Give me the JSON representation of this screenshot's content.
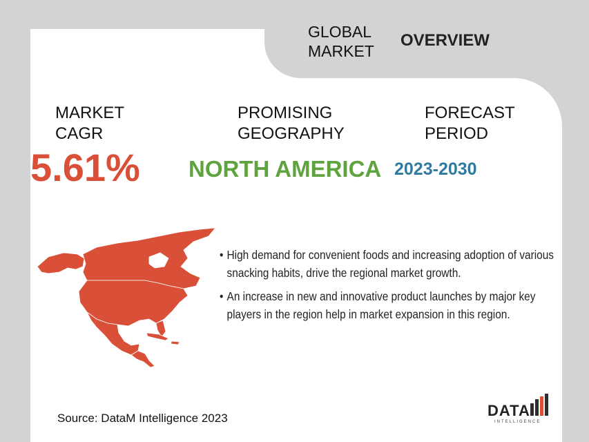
{
  "header": {
    "tab_line1": "GLOBAL",
    "tab_line2": "MARKET",
    "tab_overview": "OVERVIEW"
  },
  "stats": {
    "cagr_label_line1": "MARKET",
    "cagr_label_line2": "CAGR",
    "cagr_value": "5.61%",
    "geo_label_line1": "PROMISING",
    "geo_label_line2": "GEOGRAPHY",
    "geo_value": "NORTH AMERICA",
    "forecast_label_line1": "FORECAST",
    "forecast_label_line2": "PERIOD",
    "forecast_value": "2023-2030"
  },
  "bullets": [
    "High demand for convenient foods and increasing adoption of various snacking habits, drive the regional market growth.",
    "An increase in new and innovative product launches by major key players in the region help in market expansion in this region."
  ],
  "footer": {
    "source": "Source: DataM Intelligence 2023",
    "logo_main": "DATA",
    "logo_sub": "INTELLIGENCE"
  },
  "colors": {
    "background": "#d1d3d4",
    "map": "#d94f37",
    "cagr": "#d94f37",
    "geography": "#5fa33f",
    "forecast": "#2f7a9e"
  },
  "icons": {
    "map": "north-america-map",
    "logo_bars": "bar-chart-logo"
  }
}
